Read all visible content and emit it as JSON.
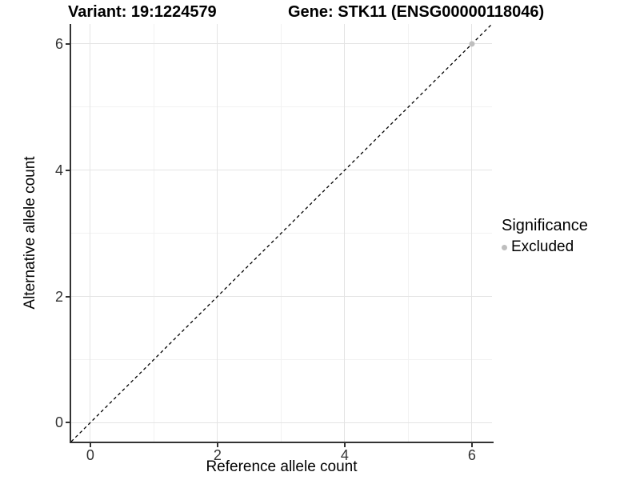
{
  "chart_data": {
    "type": "scatter",
    "titles": {
      "variant": "Variant: 19:1224579",
      "gene": "Gene: STK11 (ENSG00000118046)"
    },
    "xlabel": "Reference allele count",
    "ylabel": "Alternative allele count",
    "xlim": [
      -0.3,
      6.315
    ],
    "ylim": [
      -0.3,
      6.315
    ],
    "x_major_ticks": [
      0,
      2,
      4,
      6
    ],
    "y_major_ticks": [
      0,
      2,
      4,
      6
    ],
    "x_minor_ticks": [
      1,
      3,
      5
    ],
    "y_minor_ticks": [
      1,
      3,
      5
    ],
    "grid": true,
    "identity_line": {
      "style": "dashed",
      "color": "#000000",
      "from": [
        -0.3,
        -0.3
      ],
      "to": [
        6.315,
        6.315
      ]
    },
    "points": [
      {
        "x": 6,
        "y": 6,
        "significance": "Excluded",
        "color": "#bebebe"
      }
    ],
    "legend": {
      "title": "Significance",
      "position": "right",
      "items": [
        {
          "label": "Excluded",
          "color": "#bebebe"
        }
      ]
    },
    "colors": {
      "axis_line": "#333333",
      "tick_label": "#333333",
      "grid_major": "#e4e4e4",
      "grid_minor": "#f2f2f2",
      "background": "#ffffff"
    }
  }
}
